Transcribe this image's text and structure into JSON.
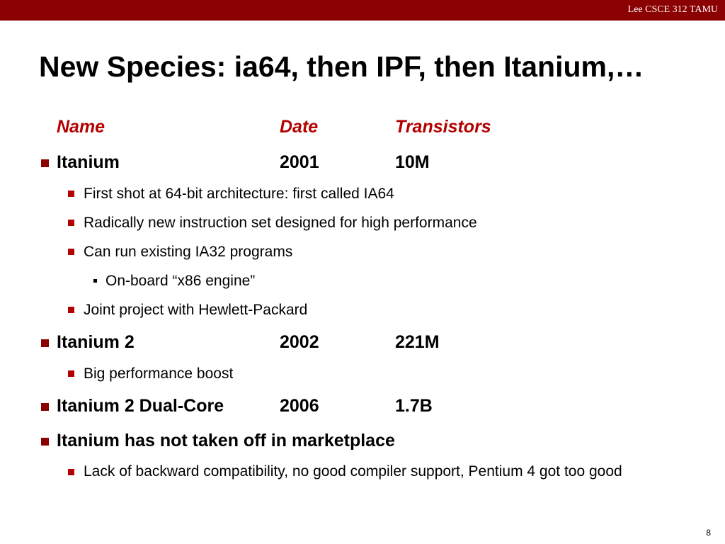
{
  "header": {
    "label": "Lee CSCE 312 TAMU",
    "bar_color": "#8b0000"
  },
  "title": "New Species: ia64, then IPF, then Itanium,…",
  "table_header": {
    "name": "Name",
    "date": "Date",
    "transistors": "Transistors",
    "color": "#b30000"
  },
  "items": [
    {
      "name": "Itanium",
      "date": "2001",
      "transistors": "10M",
      "sub": [
        "First shot at 64-bit architecture: first called IA64",
        "Radically new instruction set designed for high performance",
        "Can run existing IA32 programs",
        "Joint project with Hewlett-Packard"
      ],
      "subsub": [
        "On-board “x86 engine”"
      ]
    },
    {
      "name": "Itanium 2",
      "date": "2002",
      "transistors": "221M",
      "sub": [
        "Big performance boost"
      ]
    },
    {
      "name": "Itanium 2 Dual-Core",
      "date": "2006",
      "transistors": "1.7B"
    },
    {
      "text": "Itanium has not taken off in marketplace",
      "sub": [
        "Lack of backward compatibility, no good compiler support, Pentium 4 got too good"
      ]
    }
  ],
  "page_number": "8"
}
